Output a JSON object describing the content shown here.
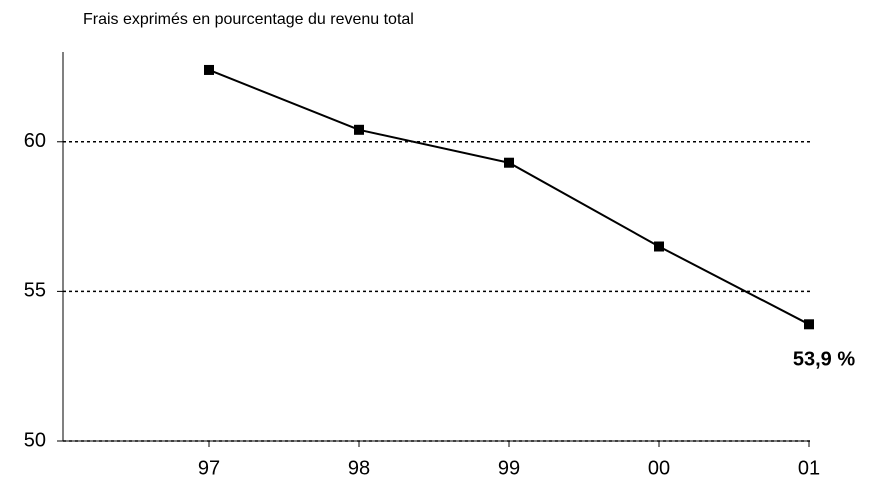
{
  "chart_data": {
    "type": "line",
    "title": "Frais exprimés en pourcentage du revenu total",
    "categories": [
      "97",
      "98",
      "99",
      "00",
      "01"
    ],
    "series": [
      {
        "color": "#000000",
        "values": [
          62.4,
          60.4,
          59.3,
          56.5,
          53.9
        ],
        "value_labels": [
          null,
          null,
          null,
          null,
          "53,9 %"
        ]
      }
    ],
    "ylim": [
      50,
      63
    ],
    "yticks": [
      50,
      55,
      60
    ],
    "grid": true
  }
}
